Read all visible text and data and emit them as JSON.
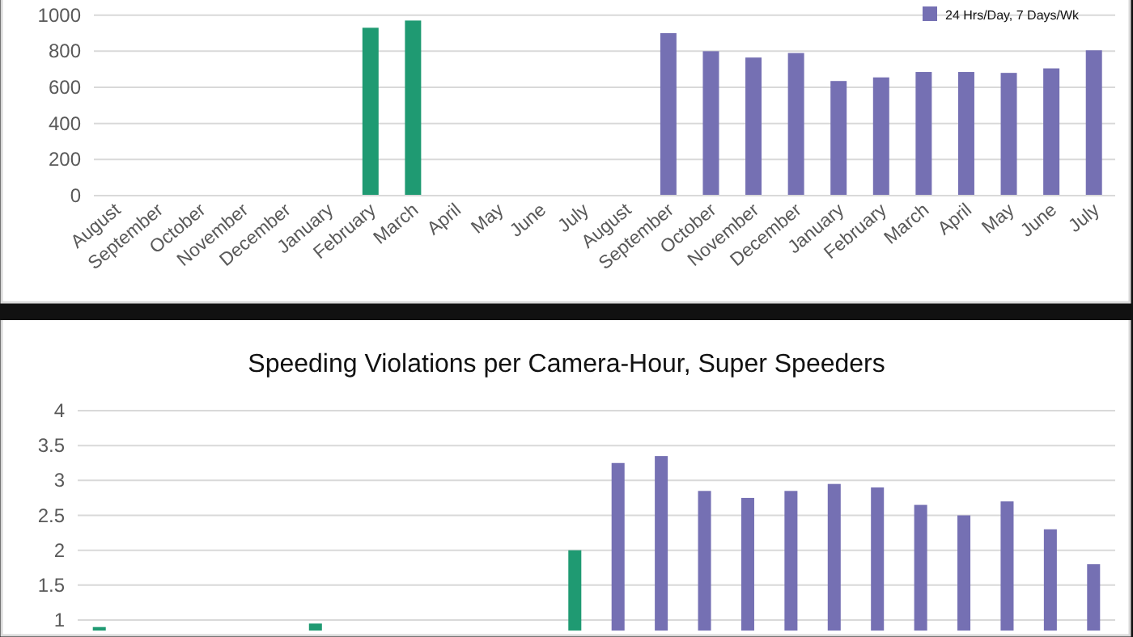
{
  "chart_data": [
    {
      "type": "bar",
      "categories": [
        "August",
        "September",
        "October",
        "November",
        "December",
        "January",
        "February",
        "March",
        "April",
        "May",
        "June",
        "July",
        "August",
        "September",
        "October",
        "November",
        "December",
        "January",
        "February",
        "March",
        "April",
        "May",
        "June",
        "July"
      ],
      "series": [
        {
          "color": "#1f9a72",
          "values": [
            null,
            null,
            null,
            null,
            null,
            null,
            930,
            970,
            null,
            null,
            null,
            null,
            null,
            null,
            null,
            null,
            null,
            null,
            null,
            null,
            null,
            null,
            null,
            null
          ]
        },
        {
          "name": "24 Hrs/Day, 7 Days/Wk",
          "color": "#7570b3",
          "values": [
            null,
            null,
            null,
            null,
            null,
            null,
            null,
            null,
            null,
            null,
            null,
            null,
            null,
            900,
            800,
            765,
            790,
            635,
            655,
            685,
            685,
            680,
            705,
            805
          ]
        }
      ],
      "ylim": [
        0,
        1030
      ],
      "yticks": [
        0,
        200,
        400,
        600,
        800,
        1000
      ],
      "grid": "y",
      "legend": "top right"
    },
    {
      "type": "bar",
      "title": "Speeding Violations per Camera-Hour, Super Speeders",
      "categories": [
        null,
        null,
        null,
        null,
        null,
        null,
        null,
        null,
        null,
        null,
        null,
        null,
        null,
        null,
        null,
        null,
        null,
        null,
        null,
        null,
        null,
        null,
        null,
        null
      ],
      "series": [
        {
          "color": "#1f9a72",
          "values": [
            0.9,
            null,
            null,
            null,
            null,
            0.95,
            null,
            null,
            null,
            null,
            null,
            2.0,
            null,
            null,
            null,
            null,
            null,
            null,
            null,
            null,
            null,
            null,
            null,
            null
          ]
        },
        {
          "color": "#7570b3",
          "values": [
            null,
            null,
            null,
            null,
            null,
            null,
            null,
            null,
            null,
            null,
            null,
            null,
            3.25,
            3.35,
            2.85,
            2.75,
            2.85,
            2.95,
            2.9,
            2.65,
            2.5,
            2.7,
            2.3,
            1.8
          ]
        }
      ],
      "ylim": [
        0.85,
        4
      ],
      "yticks": [
        1,
        1.5,
        2,
        2.5,
        3,
        3.5,
        4
      ],
      "grid": "y"
    }
  ]
}
